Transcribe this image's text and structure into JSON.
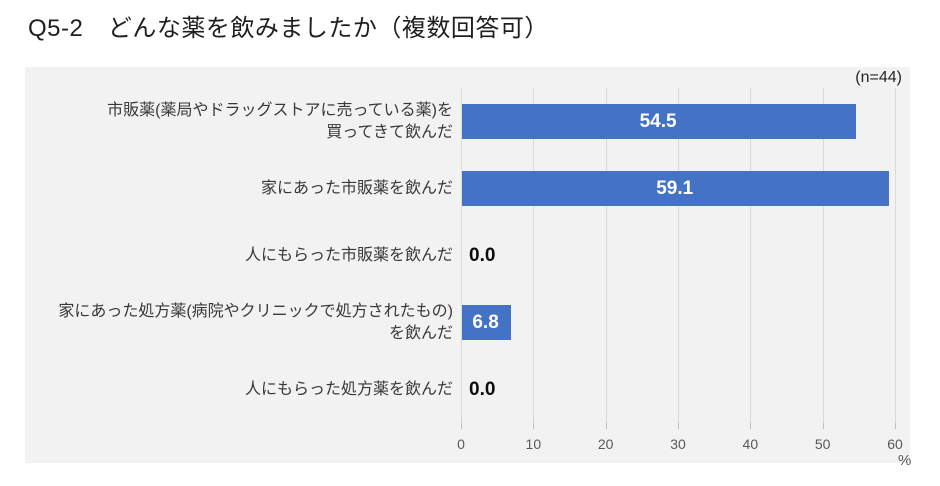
{
  "title": "Q5-2　どんな薬を飲みましたか（複数回答可）",
  "sample_label": "(n=44)",
  "colors": {
    "bar": "#4472C4",
    "panel_background": "#F2F2F2",
    "gridline": "#D9D9D9",
    "value_label_inside": "#FFFFFF",
    "value_label_outside": "#0D0D0D"
  },
  "chart_data": {
    "type": "bar",
    "orientation": "horizontal",
    "title": "Q5-2　どんな薬を飲みましたか（複数回答可）",
    "annotation": "(n=44)",
    "categories": [
      "市販薬(薬局やドラッグストアに売っている薬)を\n買ってきて飲んだ",
      "家にあった市販薬を飲んだ",
      "人にもらった市販薬を飲んだ",
      "家にあった処方薬(病院やクリニックで処方されたもの)\nを飲んだ",
      "人にもらった処方薬を飲んだ"
    ],
    "values": [
      54.5,
      59.1,
      0.0,
      6.8,
      0.0
    ],
    "value_labels": [
      "54.5",
      "59.1",
      "0.0",
      "6.8",
      "0.0"
    ],
    "xlabel": "%",
    "xlim": [
      0,
      60
    ],
    "xticks": [
      0,
      10,
      20,
      30,
      40,
      50,
      60
    ],
    "grid": true,
    "legend": false
  }
}
